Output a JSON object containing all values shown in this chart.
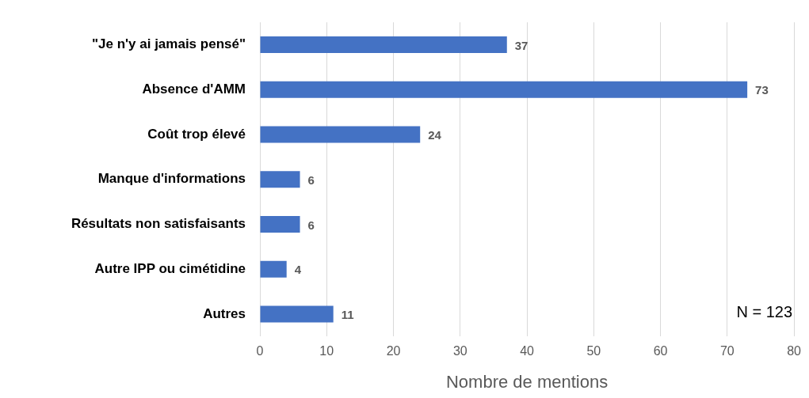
{
  "chart_data": {
    "type": "bar",
    "orientation": "horizontal",
    "categories": [
      "\"Je n'y ai jamais pensé\"",
      "Absence d'AMM",
      "Coût trop élevé",
      "Manque d'informations",
      "Résultats non satisfaisants",
      "Autre IPP ou cimétidine",
      "Autres"
    ],
    "values": [
      37,
      73,
      24,
      6,
      6,
      4,
      11
    ],
    "color": "#4472c4",
    "xlim": [
      0,
      80
    ],
    "xticks": [
      0,
      10,
      20,
      30,
      40,
      50,
      60,
      70,
      80
    ],
    "xlabel": "Nombre de mentions",
    "grid": "x",
    "data_labels": true,
    "annotations": [
      "N = 123"
    ]
  }
}
